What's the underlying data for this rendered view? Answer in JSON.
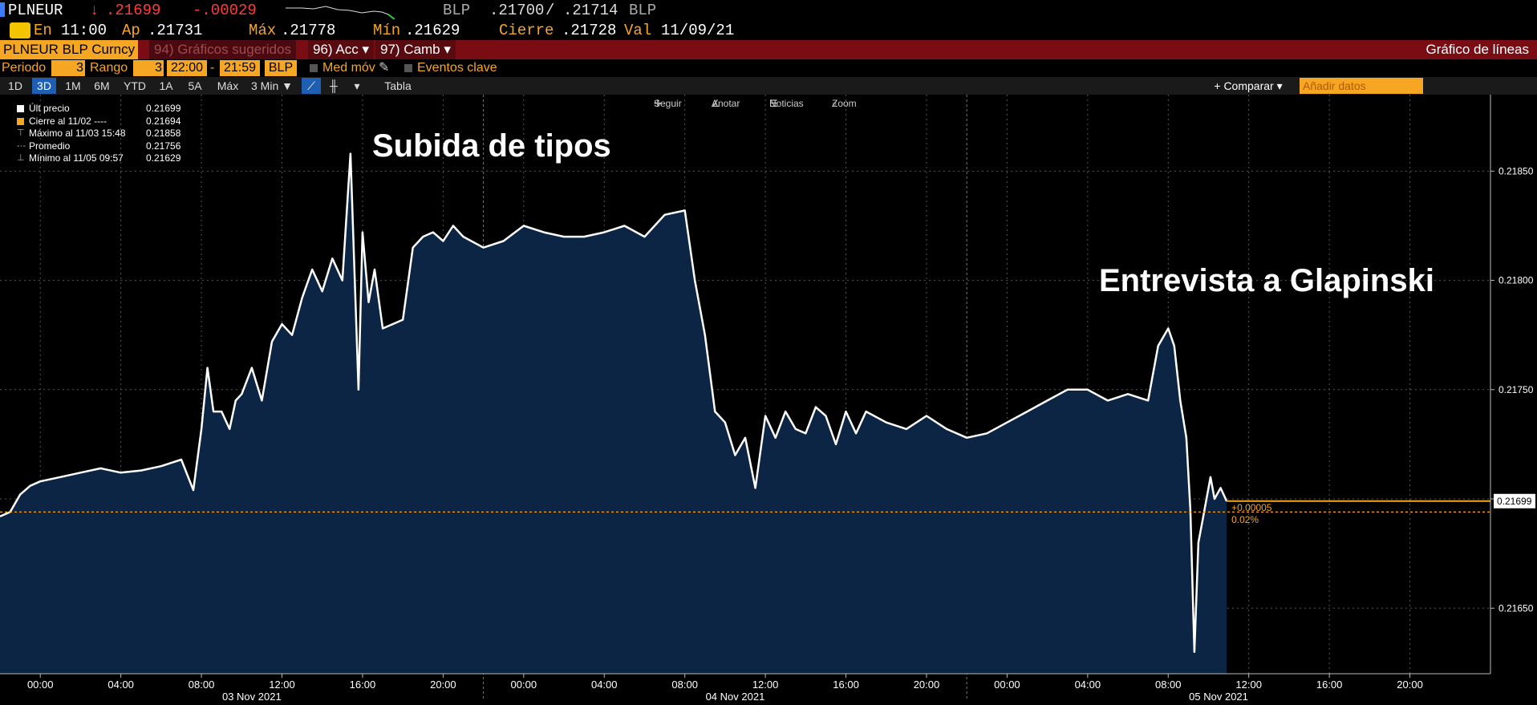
{
  "ticker": {
    "symbol": "PLNEUR",
    "arrow": "↓",
    "last": ".21699",
    "change": "-.00029",
    "source": "BLP",
    "bid": ".21700",
    "separator": "/",
    "ask": ".21714",
    "source2": "BLP"
  },
  "row2": {
    "time_label": "En",
    "time": "11:00",
    "open_label": "Ap",
    "open": ".21731",
    "high_label": "Máx",
    "high": ".21778",
    "low_label": "Mín",
    "low": ".21629",
    "close_label": "Cierre",
    "close": ".21728",
    "date_label": "Val",
    "date": "11/09/21"
  },
  "toolbar": {
    "security": "PLNEUR BLP Curncy",
    "suggested": "94) Gráficos sugeridos",
    "actions": "96) Acc",
    "edit": "97) Camb",
    "chart_type": "Gráfico de líneas"
  },
  "rangebar": {
    "period_label": "Periodo",
    "period_value": "3",
    "range_label": "Rango",
    "range_value": "3",
    "start": "22:00",
    "dash": "-",
    "end": "21:59",
    "source": "BLP",
    "ma_label": "Med móv",
    "events_label": "Eventos clave"
  },
  "periodbar": {
    "periods": [
      "1D",
      "3D",
      "1M",
      "6M",
      "YTD",
      "1A",
      "5A",
      "Máx"
    ],
    "active": "3D",
    "interval": "3 Min ▼",
    "table": "Tabla",
    "compare": "+ Comparar ▾",
    "add_data_placeholder": "Añadir datos"
  },
  "legend": [
    {
      "label": "Últ precio",
      "value": "0.21699",
      "color": "#ffffff"
    },
    {
      "label": "Cierre al 11/02 ----",
      "value": "0.21694",
      "color": "#f5a623"
    },
    {
      "label": "Máximo al 11/03 15:48",
      "value": "0.21858",
      "color": ""
    },
    {
      "label": "Promedio",
      "value": "0.21756",
      "color": ""
    },
    {
      "label": "Mínimo al 11/05 09:57",
      "value": "0.21629",
      "color": ""
    }
  ],
  "chart_tools": {
    "follow": "Seguir",
    "annotate": "Anotar",
    "news": "Noticias",
    "zoom": "Zoom"
  },
  "annotations": {
    "rate_hike": "Subida de tipos",
    "interview": "Entrevista a Glapinski"
  },
  "colors": {
    "accent_orange": "#f5a623",
    "negative_red": "#ff3b3b",
    "toolbar_red": "#7a0d14",
    "area_fill": "#0d2545",
    "line": "#ffffff"
  },
  "chart_data": {
    "type": "area",
    "title": "",
    "xlabel": "",
    "ylabel": "",
    "ylim": [
      0.2162,
      0.21885
    ],
    "y_ticks": [
      "0.21650",
      "0.21700",
      "0.21750",
      "0.21800",
      "0.21850"
    ],
    "y_tick_values": [
      0.2165,
      0.217,
      0.2175,
      0.218,
      0.2185
    ],
    "x_tick_labels": [
      "00:00",
      "04:00",
      "08:00",
      "12:00",
      "16:00",
      "20:00",
      "00:00",
      "04:00",
      "08:00",
      "12:00",
      "16:00",
      "20:00",
      "00:00",
      "04:00",
      "08:00",
      "12:00",
      "16:00",
      "20:00"
    ],
    "x_tick_hours": [
      0,
      4,
      8,
      12,
      16,
      20,
      24,
      28,
      32,
      36,
      40,
      44,
      48,
      52,
      56,
      60,
      64,
      68
    ],
    "day_labels": [
      "03 Nov 2021",
      "04 Nov 2021",
      "05 Nov 2021"
    ],
    "day_label_hours": [
      10.5,
      34.5,
      58.5
    ],
    "xlim_hours": [
      -2,
      72
    ],
    "reference_close": 0.21694,
    "reference_close_label": "0.21694",
    "last_price": 0.21699,
    "last_price_label": "0.21699",
    "change_label": "+0.00005",
    "change_pct_label": "0.02%",
    "series": [
      {
        "name": "Últ precio",
        "x_hours": [
          -2,
          -1.5,
          -1,
          -0.5,
          0,
          1,
          2,
          3,
          4,
          5,
          6,
          7,
          7.6,
          8,
          8.3,
          8.6,
          9,
          9.4,
          9.7,
          10,
          10.5,
          11,
          11.5,
          12,
          12.5,
          13,
          13.5,
          14,
          14.5,
          15,
          15.4,
          15.8,
          16,
          16.3,
          16.6,
          17,
          17.5,
          18,
          18.5,
          19,
          19.5,
          20,
          20.5,
          21,
          22,
          23,
          24,
          25,
          26,
          27,
          28,
          29,
          30,
          31,
          32,
          32.5,
          33,
          33.5,
          34,
          34.5,
          35,
          35.5,
          36,
          36.5,
          37,
          37.5,
          38,
          38.5,
          39,
          39.5,
          40,
          40.5,
          41,
          42,
          43,
          44,
          45,
          46,
          47,
          48,
          49,
          50,
          51,
          52,
          53,
          54,
          55,
          55.5,
          56,
          56.3,
          56.6,
          56.9,
          57.1,
          57.3,
          57.5,
          57.7,
          57.9,
          58.1,
          58.3,
          58.6,
          58.9
        ],
        "y": [
          0.21692,
          0.21694,
          0.21702,
          0.21706,
          0.21708,
          0.2171,
          0.21712,
          0.21714,
          0.21712,
          0.21713,
          0.21715,
          0.21718,
          0.21704,
          0.21732,
          0.2176,
          0.2174,
          0.2174,
          0.21732,
          0.21745,
          0.21748,
          0.2176,
          0.21745,
          0.21772,
          0.2178,
          0.21775,
          0.21792,
          0.21805,
          0.21795,
          0.2181,
          0.218,
          0.21858,
          0.2175,
          0.21822,
          0.2179,
          0.21805,
          0.21778,
          0.2178,
          0.21782,
          0.21815,
          0.2182,
          0.21822,
          0.21818,
          0.21825,
          0.2182,
          0.21815,
          0.21818,
          0.21825,
          0.21822,
          0.2182,
          0.2182,
          0.21822,
          0.21825,
          0.2182,
          0.2183,
          0.21832,
          0.218,
          0.21775,
          0.2174,
          0.21735,
          0.2172,
          0.21728,
          0.21705,
          0.21738,
          0.21728,
          0.2174,
          0.21732,
          0.2173,
          0.21742,
          0.21738,
          0.21725,
          0.2174,
          0.2173,
          0.2174,
          0.21735,
          0.21732,
          0.21738,
          0.21732,
          0.21728,
          0.2173,
          0.21735,
          0.2174,
          0.21745,
          0.2175,
          0.2175,
          0.21745,
          0.21748,
          0.21745,
          0.2177,
          0.21778,
          0.2177,
          0.21745,
          0.21728,
          0.21695,
          0.2163,
          0.2168,
          0.2169,
          0.217,
          0.2171,
          0.217,
          0.21705,
          0.21699
        ]
      }
    ],
    "grid": true,
    "legend_position": "top-left"
  }
}
